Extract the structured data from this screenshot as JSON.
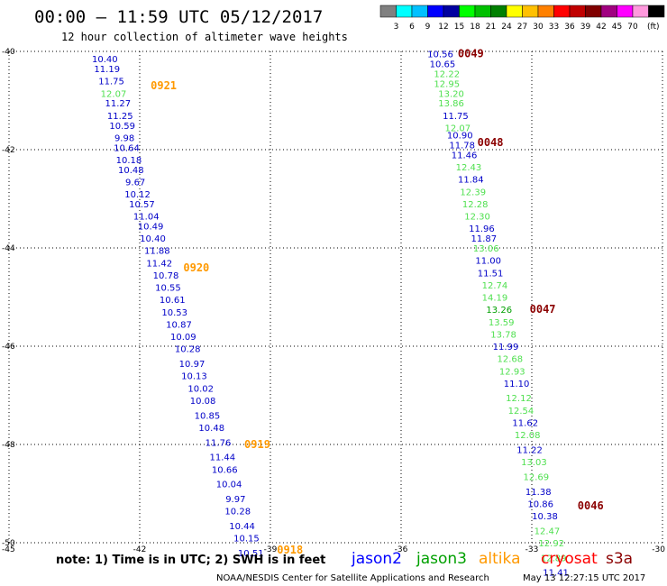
{
  "header": {
    "title": "00:00 – 11:59 UTC 05/12/2017",
    "subtitle": "12 hour collection of altimeter wave heights"
  },
  "legend": {
    "unit": "(ft)",
    "bins": [
      {
        "label": "",
        "color": "#808080"
      },
      {
        "label": "3",
        "color": "#00ffff"
      },
      {
        "label": "6",
        "color": "#00c0ff"
      },
      {
        "label": "9",
        "color": "#0000ff"
      },
      {
        "label": "12",
        "color": "#0000a0"
      },
      {
        "label": "15",
        "color": "#00ff00"
      },
      {
        "label": "18",
        "color": "#00c000"
      },
      {
        "label": "21",
        "color": "#008000"
      },
      {
        "label": "24",
        "color": "#ffff00"
      },
      {
        "label": "27",
        "color": "#ffc000"
      },
      {
        "label": "30",
        "color": "#ff8000"
      },
      {
        "label": "33",
        "color": "#ff0000"
      },
      {
        "label": "36",
        "color": "#c00000"
      },
      {
        "label": "39",
        "color": "#800000"
      },
      {
        "label": "42",
        "color": "#a00080"
      },
      {
        "label": "45",
        "color": "#ff00ff"
      },
      {
        "label": "70",
        "color": "#ff99dd"
      },
      {
        "label": "",
        "color": "#000000"
      }
    ]
  },
  "footer": {
    "note": "note:  1) Time is in UTC;  2) SWH is in feet",
    "satellites": [
      {
        "name": "jason2",
        "color": "#0000ff"
      },
      {
        "name": "jason3",
        "color": "#00a000"
      },
      {
        "name": "altika",
        "color": "#ff9900"
      },
      {
        "name": "cryosat",
        "color": "#ff0000"
      },
      {
        "name": "s3a",
        "color": "#8b0000"
      }
    ],
    "credit_left": "NOAA/NESDIS Center for Satellite Applications and Research",
    "credit_right": "May 13 12:27:15 UTC 2017"
  },
  "chart_data": {
    "type": "scatter",
    "title": "00:00 – 11:59 UTC 05/12/2017",
    "subtitle": "12 hour collection of altimeter wave heights",
    "xlim": [
      -45,
      -30
    ],
    "ylim": [
      -50,
      -40
    ],
    "x_ticks": [
      "-45",
      "-42",
      "-39",
      "-36",
      "-33",
      "-30"
    ],
    "y_ticks": [
      "-40",
      "-42",
      "-44",
      "-46",
      "-48",
      "-50"
    ],
    "grid": true,
    "colors": {
      "blue": "#0000c8",
      "green": "#50e050",
      "grid": "#000000"
    },
    "tracks": [
      {
        "points": [
          {
            "x": -42.8,
            "y": -40.15,
            "v": "10.40",
            "c": "blue"
          },
          {
            "x": -42.75,
            "y": -40.35,
            "v": "11.19",
            "c": "blue"
          },
          {
            "x": -42.65,
            "y": -40.6,
            "v": "11.75",
            "c": "blue"
          },
          {
            "x": -42.6,
            "y": -40.85,
            "v": "12.07",
            "c": "green"
          },
          {
            "x": -42.5,
            "y": -41.05,
            "v": "11.27",
            "c": "blue"
          },
          {
            "x": -42.45,
            "y": -41.3,
            "v": "11.25",
            "c": "blue"
          },
          {
            "x": -42.4,
            "y": -41.5,
            "v": "10.59",
            "c": "blue"
          },
          {
            "x": -42.35,
            "y": -41.75,
            "v": "9.98",
            "c": "blue"
          },
          {
            "x": -42.3,
            "y": -41.95,
            "v": "10.64",
            "c": "blue"
          },
          {
            "x": -42.25,
            "y": -42.2,
            "v": "10.18",
            "c": "blue"
          },
          {
            "x": -42.2,
            "y": -42.4,
            "v": "10.48",
            "c": "blue"
          },
          {
            "x": -42.1,
            "y": -42.65,
            "v": "9.67",
            "c": "blue"
          },
          {
            "x": -42.05,
            "y": -42.9,
            "v": "10.12",
            "c": "blue"
          },
          {
            "x": -41.95,
            "y": -43.1,
            "v": "10.57",
            "c": "blue"
          },
          {
            "x": -41.85,
            "y": -43.35,
            "v": "11.04",
            "c": "blue"
          },
          {
            "x": -41.75,
            "y": -43.55,
            "v": "10.49",
            "c": "blue"
          },
          {
            "x": -41.7,
            "y": -43.8,
            "v": "10.40",
            "c": "blue"
          },
          {
            "x": -41.6,
            "y": -44.05,
            "v": "11.88",
            "c": "blue"
          },
          {
            "x": -41.55,
            "y": -44.3,
            "v": "11.42",
            "c": "blue"
          },
          {
            "x": -41.4,
            "y": -44.55,
            "v": "10.78",
            "c": "blue"
          },
          {
            "x": -41.35,
            "y": -44.8,
            "v": "10.55",
            "c": "blue"
          },
          {
            "x": -41.25,
            "y": -45.05,
            "v": "10.61",
            "c": "blue"
          },
          {
            "x": -41.2,
            "y": -45.3,
            "v": "10.53",
            "c": "blue"
          },
          {
            "x": -41.1,
            "y": -45.55,
            "v": "10.87",
            "c": "blue"
          },
          {
            "x": -41.0,
            "y": -45.8,
            "v": "10.09",
            "c": "blue"
          },
          {
            "x": -40.9,
            "y": -46.05,
            "v": "10.28",
            "c": "blue"
          },
          {
            "x": -40.8,
            "y": -46.35,
            "v": "10.97",
            "c": "blue"
          },
          {
            "x": -40.75,
            "y": -46.6,
            "v": "10.13",
            "c": "blue"
          },
          {
            "x": -40.6,
            "y": -46.85,
            "v": "10.02",
            "c": "blue"
          },
          {
            "x": -40.55,
            "y": -47.1,
            "v": "10.08",
            "c": "blue"
          },
          {
            "x": -40.45,
            "y": -47.4,
            "v": "10.85",
            "c": "blue"
          },
          {
            "x": -40.35,
            "y": -47.65,
            "v": "10.48",
            "c": "blue"
          },
          {
            "x": -40.2,
            "y": -47.95,
            "v": "11.76",
            "c": "blue"
          },
          {
            "x": -40.1,
            "y": -48.25,
            "v": "11.44",
            "c": "blue"
          },
          {
            "x": -40.05,
            "y": -48.5,
            "v": "10.66",
            "c": "blue"
          },
          {
            "x": -39.95,
            "y": -48.8,
            "v": "10.04",
            "c": "blue"
          },
          {
            "x": -39.8,
            "y": -49.1,
            "v": "9.97",
            "c": "blue"
          },
          {
            "x": -39.75,
            "y": -49.35,
            "v": "10.28",
            "c": "blue"
          },
          {
            "x": -39.65,
            "y": -49.65,
            "v": "10.44",
            "c": "blue"
          },
          {
            "x": -39.55,
            "y": -49.9,
            "v": "10.15",
            "c": "blue"
          },
          {
            "x": -39.45,
            "y": -50.2,
            "v": "10.51",
            "c": "blue"
          }
        ],
        "time_labels": [
          {
            "x": -41.45,
            "y": -40.7,
            "t": "0921",
            "c": "#ff9900"
          },
          {
            "x": -40.7,
            "y": -44.4,
            "t": "0920",
            "c": "#ff9900"
          },
          {
            "x": -39.3,
            "y": -48.0,
            "t": "0919",
            "c": "#ff9900"
          },
          {
            "x": -38.55,
            "y": -50.15,
            "t": "0918",
            "c": "#ff9900"
          }
        ]
      },
      {
        "points": [
          {
            "x": -35.1,
            "y": -40.05,
            "v": "10.56",
            "c": "blue"
          },
          {
            "x": -35.05,
            "y": -40.25,
            "v": "10.65",
            "c": "blue"
          },
          {
            "x": -34.95,
            "y": -40.45,
            "v": "12.22",
            "c": "green"
          },
          {
            "x": -34.95,
            "y": -40.65,
            "v": "12.95",
            "c": "green"
          },
          {
            "x": -34.85,
            "y": -40.85,
            "v": "13.20",
            "c": "green"
          },
          {
            "x": -34.85,
            "y": -41.05,
            "v": "13.86",
            "c": "green"
          },
          {
            "x": -34.75,
            "y": -41.3,
            "v": "11.75",
            "c": "blue"
          },
          {
            "x": -34.7,
            "y": -41.55,
            "v": "12.07",
            "c": "green"
          },
          {
            "x": -34.65,
            "y": -41.7,
            "v": "10.90",
            "c": "blue"
          },
          {
            "x": -34.6,
            "y": -41.9,
            "v": "11.78",
            "c": "blue"
          },
          {
            "x": -34.55,
            "y": -42.1,
            "v": "11.46",
            "c": "blue"
          },
          {
            "x": -34.45,
            "y": -42.35,
            "v": "12.43",
            "c": "green"
          },
          {
            "x": -34.4,
            "y": -42.6,
            "v": "11.84",
            "c": "blue"
          },
          {
            "x": -34.35,
            "y": -42.85,
            "v": "12.39",
            "c": "green"
          },
          {
            "x": -34.3,
            "y": -43.1,
            "v": "12.28",
            "c": "green"
          },
          {
            "x": -34.25,
            "y": -43.35,
            "v": "12.30",
            "c": "green"
          },
          {
            "x": -34.15,
            "y": -43.6,
            "v": "11.96",
            "c": "blue"
          },
          {
            "x": -34.1,
            "y": -43.8,
            "v": "11.87",
            "c": "blue"
          },
          {
            "x": -34.05,
            "y": -44.0,
            "v": "13.06",
            "c": "green"
          },
          {
            "x": -34.0,
            "y": -44.25,
            "v": "11.00",
            "c": "blue"
          },
          {
            "x": -33.95,
            "y": -44.5,
            "v": "11.51",
            "c": "blue"
          },
          {
            "x": -33.85,
            "y": -44.75,
            "v": "12.74",
            "c": "green"
          },
          {
            "x": -33.85,
            "y": -45.0,
            "v": "14.19",
            "c": "green"
          },
          {
            "x": -33.75,
            "y": -45.25,
            "v": "13.26",
            "c": "#00a000"
          },
          {
            "x": -33.7,
            "y": -45.5,
            "v": "13.59",
            "c": "green"
          },
          {
            "x": -33.65,
            "y": -45.75,
            "v": "13.78",
            "c": "green"
          },
          {
            "x": -33.6,
            "y": -46.0,
            "v": "11.99",
            "c": "blue"
          },
          {
            "x": -33.5,
            "y": -46.25,
            "v": "12.68",
            "c": "green"
          },
          {
            "x": -33.45,
            "y": -46.5,
            "v": "12.93",
            "c": "green"
          },
          {
            "x": -33.35,
            "y": -46.75,
            "v": "11.10",
            "c": "blue"
          },
          {
            "x": -33.3,
            "y": -47.05,
            "v": "12.12",
            "c": "green"
          },
          {
            "x": -33.25,
            "y": -47.3,
            "v": "12.54",
            "c": "green"
          },
          {
            "x": -33.15,
            "y": -47.55,
            "v": "11.62",
            "c": "blue"
          },
          {
            "x": -33.1,
            "y": -47.8,
            "v": "12.08",
            "c": "green"
          },
          {
            "x": -33.05,
            "y": -48.1,
            "v": "11.22",
            "c": "blue"
          },
          {
            "x": -32.95,
            "y": -48.35,
            "v": "13.03",
            "c": "green"
          },
          {
            "x": -32.9,
            "y": -48.65,
            "v": "12.69",
            "c": "green"
          },
          {
            "x": -32.85,
            "y": -48.95,
            "v": "11.38",
            "c": "blue"
          },
          {
            "x": -32.8,
            "y": -49.2,
            "v": "10.86",
            "c": "blue"
          },
          {
            "x": -32.7,
            "y": -49.45,
            "v": "10.38",
            "c": "blue"
          },
          {
            "x": -32.65,
            "y": -49.75,
            "v": "12.47",
            "c": "green"
          },
          {
            "x": -32.55,
            "y": -50.0,
            "v": "12.92",
            "c": "green"
          },
          {
            "x": -32.5,
            "y": -50.3,
            "v": "12.89",
            "c": "green"
          },
          {
            "x": -32.45,
            "y": -50.6,
            "v": "11.41",
            "c": "blue"
          }
        ],
        "time_labels": [
          {
            "x": -34.4,
            "y": -40.05,
            "t": "0049",
            "c": "#8b0000"
          },
          {
            "x": -33.95,
            "y": -41.85,
            "t": "0048",
            "c": "#8b0000"
          },
          {
            "x": -32.75,
            "y": -45.25,
            "t": "0047",
            "c": "#8b0000"
          },
          {
            "x": -31.65,
            "y": -49.25,
            "t": "0046",
            "c": "#8b0000"
          }
        ]
      }
    ]
  }
}
